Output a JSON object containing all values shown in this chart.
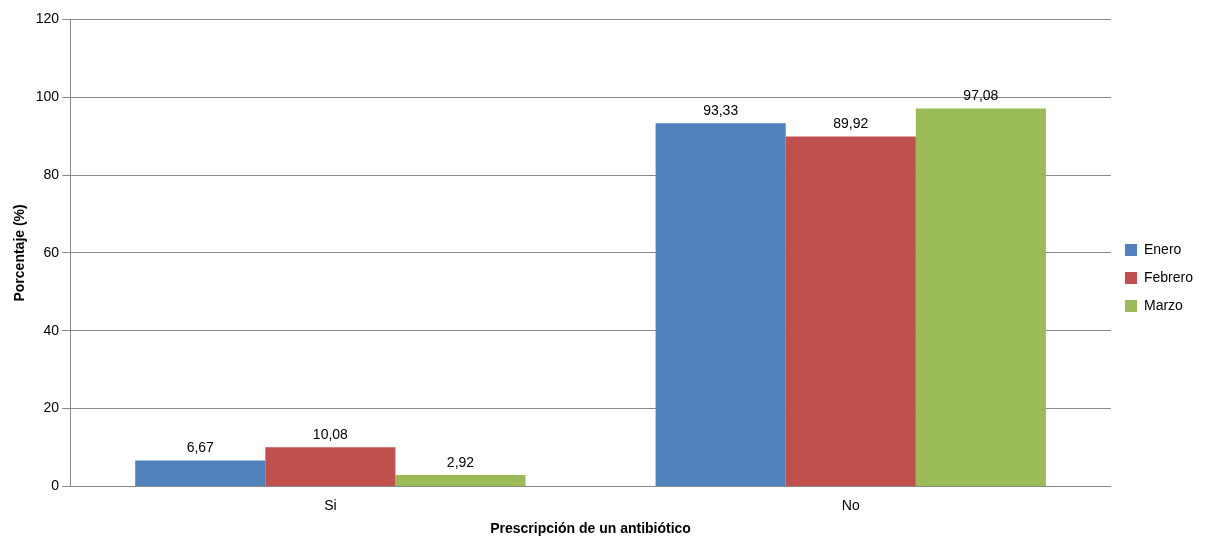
{
  "chart_data": {
    "type": "bar",
    "xlabel": "Prescripción de un antibiótico",
    "ylabel": "Porcentaje (%)",
    "categories": [
      "Si",
      "No"
    ],
    "series": [
      {
        "name": "Enero",
        "color": "#4f81bd",
        "values": [
          6.67,
          93.33
        ],
        "value_labels": [
          "6,67",
          "93,33"
        ]
      },
      {
        "name": "Febrero",
        "color": "#c0504d",
        "values": [
          10.08,
          89.92
        ],
        "value_labels": [
          "10,08",
          "89,92"
        ]
      },
      {
        "name": "Marzo",
        "color": "#9bbb59",
        "values": [
          2.92,
          97.08
        ],
        "value_labels": [
          "2,92",
          "97,08"
        ]
      }
    ],
    "ylim": [
      0,
      120
    ],
    "yticks": [
      0,
      20,
      40,
      60,
      80,
      100,
      120
    ],
    "grid": "y",
    "legend": "right"
  }
}
